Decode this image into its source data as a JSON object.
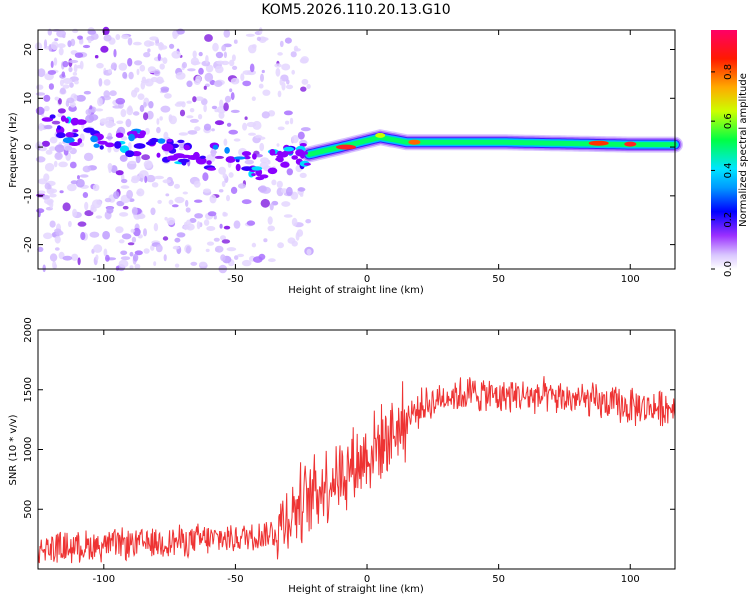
{
  "title": "KOM5.2026.110.20.13.G10",
  "chart_data": [
    {
      "type": "heatmap",
      "xlabel": "Height of straight line (km)",
      "ylabel": "Frequency (Hz)",
      "xlim": [
        -125,
        117
      ],
      "ylim": [
        -25,
        24
      ],
      "xticks": [
        -100,
        -50,
        0,
        50,
        100
      ],
      "yticks": [
        -20,
        -10,
        0,
        10,
        20
      ],
      "colorbar": {
        "label": "Normalized spectral amplitude",
        "range": [
          0,
          0.97
        ],
        "ticks": [
          0.0,
          0.2,
          0.4,
          0.6,
          0.8
        ],
        "colors": [
          "#ffffff",
          "#b48cff",
          "#8a00ff",
          "#0000ff",
          "#00ccff",
          "#00ff66",
          "#ccff00",
          "#ff8800",
          "#ff0000",
          "#ff0066"
        ]
      },
      "ridge": [
        {
          "x": -120,
          "f": 4
        },
        {
          "x": -100,
          "f": 2
        },
        {
          "x": -80,
          "f": 0
        },
        {
          "x": -60,
          "f": -2
        },
        {
          "x": -40,
          "f": -4
        },
        {
          "x": -30,
          "f": -2
        },
        {
          "x": -22,
          "f": -1.5
        },
        {
          "x": -10,
          "f": 0
        },
        {
          "x": 5,
          "f": 2
        },
        {
          "x": 15,
          "f": 1
        },
        {
          "x": 50,
          "f": 1
        },
        {
          "x": 100,
          "f": 0.5
        },
        {
          "x": 117,
          "f": 0.5
        }
      ]
    },
    {
      "type": "line",
      "xlabel": "Height of straight line (km)",
      "ylabel": "SNR (10 * v/v)",
      "xlim": [
        -125,
        117
      ],
      "ylim": [
        0,
        2000
      ],
      "xticks": [
        -100,
        -50,
        0,
        50,
        100
      ],
      "yticks": [
        500,
        1000,
        1500,
        2000
      ],
      "color": "#ee3333",
      "envelope": [
        {
          "x": -125,
          "y": 170
        },
        {
          "x": -100,
          "y": 200
        },
        {
          "x": -75,
          "y": 230
        },
        {
          "x": -50,
          "y": 260
        },
        {
          "x": -35,
          "y": 300
        },
        {
          "x": -30,
          "y": 450
        },
        {
          "x": -25,
          "y": 550
        },
        {
          "x": -20,
          "y": 650
        },
        {
          "x": -10,
          "y": 800
        },
        {
          "x": 0,
          "y": 950
        },
        {
          "x": 10,
          "y": 1150
        },
        {
          "x": 20,
          "y": 1350
        },
        {
          "x": 30,
          "y": 1450
        },
        {
          "x": 40,
          "y": 1470
        },
        {
          "x": 50,
          "y": 1450
        },
        {
          "x": 60,
          "y": 1450
        },
        {
          "x": 80,
          "y": 1420
        },
        {
          "x": 100,
          "y": 1350
        },
        {
          "x": 117,
          "y": 1350
        }
      ]
    }
  ]
}
